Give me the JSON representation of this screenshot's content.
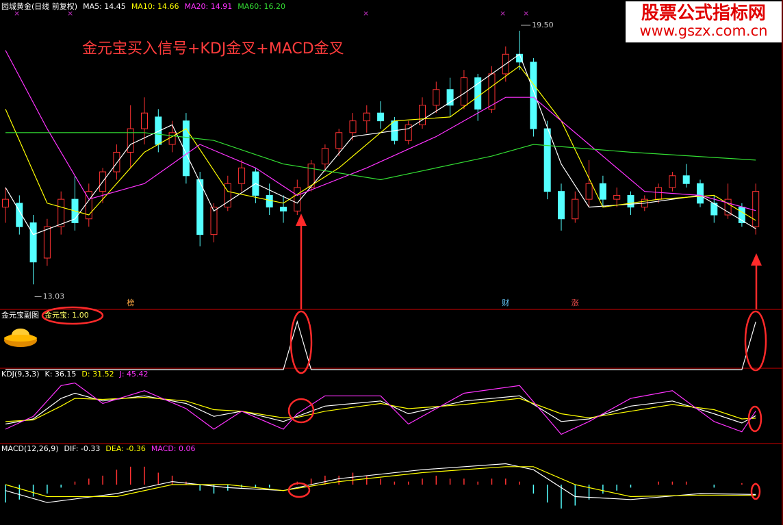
{
  "watermark": {
    "title": "股票公式指标网",
    "url": "www.gszx.com.cn"
  },
  "chart_data": [
    {
      "type": "candlestick",
      "title": "园城黄金(日线 前复权)",
      "annotation": "金元宝买入信号+KDJ金叉+MACD金叉",
      "up_color": "#ff3232",
      "down_color": "#54ffff",
      "ylim": [
        12.6,
        19.9
      ],
      "open": [
        15.0,
        15.1,
        14.6,
        13.7,
        14.5,
        15.2,
        14.7,
        15.4,
        15.9,
        16.4,
        17.0,
        17.3,
        16.6,
        17.2,
        15.7,
        14.3,
        15.0,
        15.6,
        15.9,
        15.3,
        15.0,
        14.9,
        15.5,
        16.1,
        16.5,
        16.9,
        17.2,
        17.4,
        17.2,
        16.7,
        17.1,
        17.6,
        18.0,
        17.6,
        18.3,
        17.5,
        18.4,
        18.9,
        18.7,
        17.0,
        15.4,
        14.7,
        15.2,
        15.6,
        15.2,
        15.3,
        15.0,
        15.2,
        15.5,
        15.8,
        15.6,
        15.1,
        14.8,
        15.0,
        14.5
      ],
      "high": [
        15.5,
        15.3,
        14.8,
        14.7,
        15.4,
        15.8,
        15.6,
        16.0,
        16.6,
        17.6,
        17.8,
        17.5,
        17.2,
        17.4,
        15.9,
        15.1,
        15.8,
        16.2,
        16.0,
        15.6,
        15.3,
        15.7,
        16.2,
        16.6,
        17.0,
        17.4,
        17.6,
        17.7,
        17.3,
        17.2,
        17.8,
        18.2,
        18.3,
        18.5,
        18.4,
        18.6,
        19.1,
        19.5,
        18.8,
        17.2,
        15.6,
        15.4,
        16.2,
        15.8,
        15.5,
        15.4,
        15.3,
        15.6,
        15.9,
        16.1,
        15.7,
        15.3,
        15.6,
        15.1,
        15.6
      ],
      "low": [
        14.6,
        14.3,
        13.03,
        13.5,
        14.3,
        14.4,
        14.5,
        15.1,
        15.7,
        16.0,
        16.6,
        16.4,
        16.4,
        15.6,
        14.0,
        14.1,
        14.9,
        15.4,
        15.1,
        14.8,
        14.6,
        14.8,
        15.4,
        15.9,
        16.3,
        16.7,
        16.9,
        17.0,
        16.6,
        16.6,
        17.0,
        17.4,
        17.3,
        17.5,
        17.2,
        17.4,
        18.2,
        18.5,
        16.8,
        15.2,
        14.4,
        14.6,
        15.0,
        15.0,
        15.0,
        14.8,
        14.9,
        15.1,
        15.4,
        15.5,
        15.0,
        14.6,
        14.7,
        14.5,
        14.3
      ],
      "close": [
        15.2,
        14.5,
        13.6,
        14.5,
        15.2,
        14.6,
        15.4,
        15.9,
        16.4,
        17.0,
        17.4,
        16.6,
        16.9,
        15.8,
        14.3,
        15.0,
        15.6,
        16.0,
        15.3,
        15.0,
        14.9,
        15.5,
        16.1,
        16.5,
        16.9,
        17.2,
        17.4,
        17.2,
        16.7,
        17.1,
        17.6,
        18.0,
        17.6,
        18.3,
        17.5,
        18.4,
        18.9,
        18.7,
        17.0,
        15.4,
        14.7,
        15.2,
        15.6,
        15.2,
        15.3,
        15.0,
        15.2,
        15.5,
        15.8,
        15.6,
        15.1,
        14.8,
        15.2,
        14.6,
        15.4
      ],
      "extremes": [
        {
          "value": 19.5,
          "label": "19.50"
        },
        {
          "value": 13.03,
          "label": "13.03"
        }
      ],
      "markers": [
        {
          "label": "榜",
          "x": 9
        },
        {
          "label": "财",
          "x": 36
        },
        {
          "label": "涨",
          "x": 41
        }
      ],
      "series": [
        {
          "name": "MA5: 14.45",
          "color": "#ffffff",
          "x": [
            0,
            2,
            5,
            9,
            12,
            15,
            18,
            21,
            25,
            29,
            33,
            37,
            40,
            42,
            46,
            50,
            54
          ],
          "values": [
            15.5,
            14.3,
            14.7,
            16.6,
            17.1,
            14.9,
            15.6,
            15.1,
            16.8,
            17.0,
            17.9,
            18.9,
            16.1,
            15.0,
            15.1,
            15.3,
            14.45
          ]
        },
        {
          "name": "MA10: 14.66",
          "color": "#ffff00",
          "x": [
            0,
            3,
            6,
            10,
            13,
            16,
            20,
            24,
            28,
            32,
            37,
            40,
            43,
            47,
            51,
            54
          ],
          "values": [
            17.5,
            15.1,
            14.8,
            16.4,
            17.0,
            15.4,
            15.1,
            16.0,
            17.2,
            17.3,
            18.6,
            17.2,
            15.0,
            15.2,
            15.3,
            14.66
          ]
        },
        {
          "name": "MA20: 14.91",
          "color": "#ff33ff",
          "x": [
            0,
            3,
            6,
            10,
            14,
            18,
            21,
            26,
            31,
            36,
            38,
            42,
            46,
            50,
            54
          ],
          "values": [
            19.0,
            17.0,
            15.2,
            15.6,
            16.6,
            16.0,
            15.3,
            16.0,
            16.8,
            17.8,
            17.8,
            16.6,
            15.4,
            15.3,
            14.91
          ]
        },
        {
          "name": "MA60: 16.20",
          "color": "#33dd33",
          "x": [
            0,
            10,
            15,
            20,
            27,
            35,
            38,
            45,
            54
          ],
          "values": [
            16.9,
            16.9,
            16.7,
            16.1,
            15.7,
            16.3,
            16.6,
            16.4,
            16.2
          ]
        }
      ]
    },
    {
      "type": "signal",
      "title": "金元宝副图",
      "ylim": [
        0,
        1
      ],
      "series": [
        {
          "name": "金元宝: 1.00",
          "color": "#ffffff",
          "values": [
            0,
            0,
            0,
            0,
            0,
            0,
            0,
            0,
            0,
            0,
            0,
            0,
            0,
            0,
            0,
            0,
            0,
            0,
            0,
            0,
            0,
            1,
            0,
            0,
            0,
            0,
            0,
            0,
            0,
            0,
            0,
            0,
            0,
            0,
            0,
            0,
            0,
            0,
            0,
            0,
            0,
            0,
            0,
            0,
            0,
            0,
            0,
            0,
            0,
            0,
            0,
            0,
            0,
            0,
            1
          ]
        }
      ]
    },
    {
      "type": "line",
      "title": "KDJ(9,3,3)",
      "ylim": [
        -10,
        110
      ],
      "series": [
        {
          "name": "K: 36.15",
          "color": "#ffffff",
          "x": [
            0,
            2,
            4,
            5,
            7,
            10,
            13,
            15,
            17,
            20,
            21,
            23,
            27,
            29,
            33,
            37,
            40,
            42,
            45,
            48,
            51,
            53,
            54
          ],
          "values": [
            20,
            30,
            70,
            80,
            65,
            75,
            60,
            35,
            45,
            25,
            35,
            55,
            65,
            40,
            65,
            75,
            25,
            30,
            55,
            65,
            40,
            22,
            36.15
          ]
        },
        {
          "name": "D: 31.52",
          "color": "#ffff00",
          "x": [
            0,
            2,
            4,
            5,
            7,
            10,
            13,
            15,
            17,
            20,
            21,
            23,
            27,
            29,
            33,
            37,
            40,
            42,
            45,
            48,
            51,
            53,
            54
          ],
          "values": [
            25,
            28,
            55,
            70,
            68,
            72,
            65,
            48,
            45,
            32,
            33,
            45,
            60,
            50,
            58,
            70,
            40,
            32,
            45,
            58,
            48,
            30,
            31.52
          ]
        },
        {
          "name": "J: 45.42",
          "color": "#ff33ff",
          "x": [
            0,
            2,
            4,
            5,
            7,
            10,
            13,
            15,
            17,
            20,
            21,
            23,
            27,
            29,
            33,
            37,
            40,
            42,
            45,
            48,
            51,
            53,
            54
          ],
          "values": [
            10,
            35,
            95,
            100,
            60,
            85,
            50,
            10,
            45,
            10,
            40,
            75,
            75,
            20,
            80,
            95,
            0,
            25,
            70,
            85,
            25,
            5,
            45.42
          ]
        }
      ]
    },
    {
      "type": "macd",
      "title": "MACD(12,26,9)",
      "ylim": [
        -1.1,
        1.1
      ],
      "series": [
        {
          "name": "DIF: -0.33",
          "color": "#ffffff",
          "x": [
            0,
            3,
            8,
            12,
            16,
            20,
            24,
            30,
            36,
            38,
            41,
            45,
            50,
            54
          ],
          "values": [
            -0.2,
            -0.6,
            -0.3,
            0.1,
            -0.1,
            -0.2,
            0.2,
            0.5,
            0.7,
            0.5,
            -0.4,
            -0.5,
            -0.3,
            -0.33
          ]
        },
        {
          "name": "DEA: -0.36",
          "color": "#ffff00",
          "x": [
            0,
            3,
            8,
            12,
            16,
            20,
            24,
            30,
            36,
            38,
            41,
            45,
            50,
            54
          ],
          "values": [
            0,
            -0.4,
            -0.4,
            0,
            0,
            -0.2,
            0.1,
            0.4,
            0.6,
            0.6,
            0.0,
            -0.4,
            -0.35,
            -0.36
          ]
        }
      ],
      "histogram": {
        "name": "MACD: 0.06",
        "color": "#ff33ff",
        "up_color": "#ff3232",
        "down_color": "#54ffff",
        "values": [
          -0.6,
          -0.5,
          -0.4,
          -0.3,
          -0.1,
          0.1,
          0.2,
          0.3,
          0.5,
          0.6,
          0.6,
          0.4,
          0.3,
          0.1,
          -0.2,
          -0.3,
          -0.2,
          -0.1,
          -0.1,
          -0.1,
          0.0,
          0.1,
          0.2,
          0.3,
          0.3,
          0.4,
          0.3,
          0.2,
          0.1,
          0.1,
          0.2,
          0.3,
          0.2,
          0.2,
          0.1,
          0.2,
          0.2,
          0.1,
          -0.3,
          -0.6,
          -0.8,
          -0.7,
          -0.5,
          -0.3,
          -0.2,
          -0.1,
          0.0,
          0.1,
          0.1,
          0.1,
          0.0,
          -0.1,
          0.0,
          0.05,
          0.06
        ]
      }
    }
  ]
}
